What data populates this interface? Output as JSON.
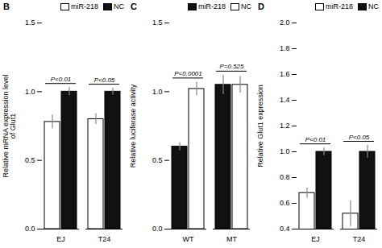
{
  "chart_data": [
    {
      "type": "bar",
      "title": "B",
      "ylabel": "Relative mRNA expression level\nof Glut1",
      "categories": [
        "EJ",
        "T24"
      ],
      "series": [
        {
          "name": "miR-218",
          "color": "#ffffff",
          "values": [
            0.78,
            0.8
          ],
          "errors": [
            0.05,
            0.04
          ]
        },
        {
          "name": "NC",
          "color": "#111111",
          "values": [
            1.0,
            1.0
          ],
          "errors": [
            0.03,
            0.025
          ]
        }
      ],
      "ylim": [
        0.0,
        1.5
      ],
      "yticks": [
        {
          "value": 0,
          "label": "0.0"
        },
        0.5,
        {
          "value": 1,
          "label": "1.0"
        },
        1.5
      ],
      "annotations": [
        {
          "category": "EJ",
          "text": "P<0.01"
        },
        {
          "category": "T24",
          "text": "P<0.05"
        }
      ]
    },
    {
      "type": "bar",
      "title": "C",
      "ylabel": "Relative luciferase activity",
      "categories": [
        "WT",
        "MT"
      ],
      "series": [
        {
          "name": "miR-218",
          "color": "#111111",
          "values": [
            0.6,
            1.05
          ],
          "errors": [
            0.03,
            0.07
          ]
        },
        {
          "name": "NC",
          "color": "#ffffff",
          "values": [
            1.02,
            1.05
          ],
          "errors": [
            0.05,
            0.06
          ]
        }
      ],
      "ylim": [
        0.0,
        1.5
      ],
      "yticks": [
        {
          "value": 0,
          "label": "0.0"
        },
        0.5,
        {
          "value": 1,
          "label": "1.0"
        },
        1.5
      ],
      "annotations": [
        {
          "category": "WT",
          "text": "P<0.0001"
        },
        {
          "category": "MT",
          "text": "P=0.525"
        }
      ]
    },
    {
      "type": "bar",
      "title": "D",
      "ylabel": "Relative Glut1 expression",
      "categories": [
        "EJ",
        "T24"
      ],
      "series": [
        {
          "name": "miR-218",
          "color": "#ffffff",
          "values": [
            0.68,
            0.52
          ],
          "errors": [
            0.04,
            0.1
          ]
        },
        {
          "name": "NC",
          "color": "#111111",
          "values": [
            1.0,
            1.0
          ],
          "errors": [
            0.03,
            0.05
          ]
        }
      ],
      "ylim": [
        0.4,
        2.0
      ],
      "yticks": [
        0.4,
        0.6,
        0.8,
        {
          "value": 1,
          "label": "1.0"
        },
        1.2,
        1.4,
        1.6,
        1.8,
        {
          "value": 2,
          "label": "2.0"
        }
      ],
      "annotations": [
        {
          "category": "EJ",
          "text": "P<0.01"
        },
        {
          "category": "T24",
          "text": "P<0.05"
        }
      ]
    }
  ]
}
